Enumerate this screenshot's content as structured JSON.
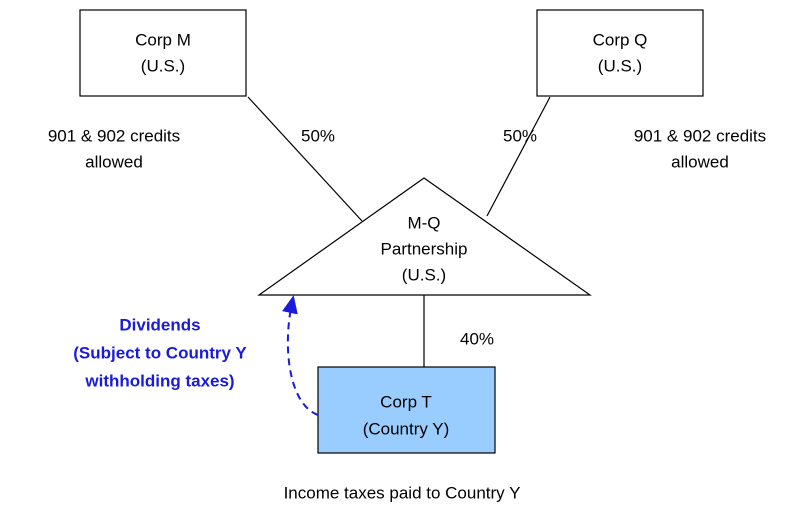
{
  "nodes": [
    {
      "label": [
        "Corp M",
        "(U.S.)"
      ]
    },
    {
      "label": [
        "Corp Q",
        "(U.S.)"
      ]
    },
    {
      "label": [
        "M-Q",
        "Partnership",
        "(U.S.)"
      ]
    },
    {
      "label": [
        "Corp T",
        "(Country Y)"
      ]
    }
  ],
  "edges": [
    {
      "label": "50%"
    },
    {
      "label": "50%"
    },
    {
      "label": "40%"
    }
  ],
  "notes": [
    {
      "text": [
        "901 & 902 credits",
        "allowed"
      ]
    },
    {
      "text": [
        "901 & 902 credits",
        "allowed"
      ]
    },
    {
      "text": [
        "Income taxes paid to Country Y"
      ]
    }
  ],
  "flow": {
    "label": [
      "Dividends",
      "(Subject to Country Y",
      "withholding taxes)"
    ]
  }
}
